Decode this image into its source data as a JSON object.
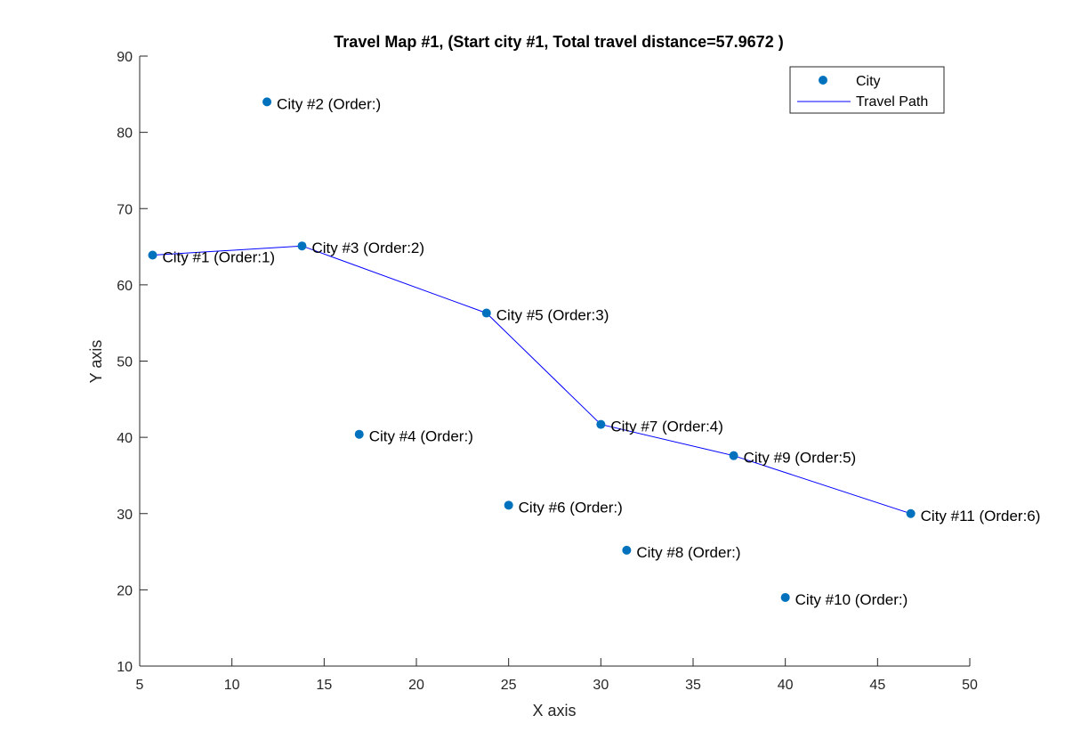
{
  "chart_data": {
    "type": "scatter",
    "title": "Travel Map #1, (Start city #1, Total travel distance=57.9672 )",
    "xlabel": "X axis",
    "ylabel": "Y axis",
    "xlim": [
      5,
      50
    ],
    "ylim": [
      10,
      90
    ],
    "xticks": [
      5,
      10,
      15,
      20,
      25,
      30,
      35,
      40,
      45,
      50
    ],
    "yticks": [
      10,
      20,
      30,
      40,
      50,
      60,
      70,
      80,
      90
    ],
    "grid": false,
    "legend_position": "top-right",
    "colors": {
      "city": "#0072BD",
      "path": "#0000FF"
    },
    "series": [
      {
        "name": "City",
        "type": "scatter",
        "points": [
          {
            "label": "City #1 (Order:1)",
            "x": 5.7,
            "y": 63.9
          },
          {
            "label": "City #2 (Order:)",
            "x": 11.9,
            "y": 84.0
          },
          {
            "label": "City #3 (Order:2)",
            "x": 13.8,
            "y": 65.1
          },
          {
            "label": "City #4 (Order:)",
            "x": 16.9,
            "y": 40.4
          },
          {
            "label": "City #5 (Order:3)",
            "x": 23.8,
            "y": 56.3
          },
          {
            "label": "City #6 (Order:)",
            "x": 25.0,
            "y": 31.1
          },
          {
            "label": "City #7 (Order:4)",
            "x": 30.0,
            "y": 41.7
          },
          {
            "label": "City #8 (Order:)",
            "x": 31.4,
            "y": 25.2
          },
          {
            "label": "City #9 (Order:5)",
            "x": 37.2,
            "y": 37.6
          },
          {
            "label": "City #10 (Order:)",
            "x": 40.0,
            "y": 19.0
          },
          {
            "label": "City #11 (Order:6)",
            "x": 46.8,
            "y": 30.0
          }
        ]
      },
      {
        "name": "Travel Path",
        "type": "line",
        "points": [
          {
            "x": 5.7,
            "y": 63.9
          },
          {
            "x": 13.8,
            "y": 65.1
          },
          {
            "x": 23.8,
            "y": 56.3
          },
          {
            "x": 30.0,
            "y": 41.7
          },
          {
            "x": 37.2,
            "y": 37.6
          },
          {
            "x": 46.8,
            "y": 30.0
          }
        ]
      }
    ]
  }
}
